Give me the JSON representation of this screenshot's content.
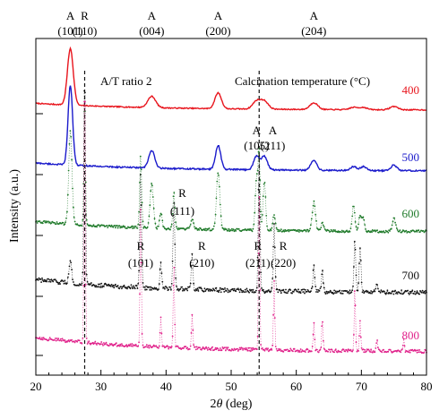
{
  "chart_data": {
    "type": "line",
    "title": "",
    "xlabel_prefix": "2",
    "xlabel_symbol": "θ",
    "xlabel_suffix": " (deg)",
    "ylabel": "Intensity (a.u.)",
    "xlim": [
      20,
      80
    ],
    "x_ticks": [
      20,
      30,
      40,
      50,
      60,
      70,
      80
    ],
    "grid": false,
    "y_ticks_shown": false,
    "annotations": {
      "ratio": "A/T ratio 2",
      "legend_title": "Calcination temperature (°C)"
    },
    "top_peak_labels": [
      {
        "phase": "A",
        "hkl": "(101)",
        "x": 25.3
      },
      {
        "phase": "R",
        "hkl": "(110)",
        "x": 27.5
      },
      {
        "phase": "A",
        "hkl": "(004)",
        "x": 37.8
      },
      {
        "phase": "A",
        "hkl": "(200)",
        "x": 48.0
      },
      {
        "phase": "A",
        "hkl": "(204)",
        "x": 62.7
      }
    ],
    "inline_peak_labels": [
      {
        "phase": "A",
        "hkl": "(105)",
        "x": 53.9,
        "series": "500"
      },
      {
        "phase": "A",
        "hkl": "(211)",
        "x": 55.1,
        "series": "500"
      },
      {
        "phase": "R",
        "hkl": "(111)",
        "x": 41.2,
        "series": "600"
      },
      {
        "phase": "R",
        "hkl": "(101)",
        "x": 36.1,
        "series": "700"
      },
      {
        "phase": "R",
        "hkl": "(210)",
        "x": 44.0,
        "series": "700"
      },
      {
        "phase": "R",
        "hkl": "(211)",
        "x": 54.3,
        "series": "700"
      },
      {
        "phase": "R",
        "hkl": "(220)",
        "x": 56.6,
        "series": "700"
      }
    ],
    "rutile_reference_lines": [
      27.5,
      54.3
    ],
    "series": [
      {
        "name": "400",
        "color": "#e8141c",
        "style": "line",
        "background": 0.12,
        "noise": 0.018,
        "peaks": [
          [
            25.3,
            1.0,
            0.45
          ],
          [
            37.8,
            0.2,
            0.6
          ],
          [
            48.0,
            0.28,
            0.5
          ],
          [
            53.9,
            0.14,
            0.6
          ],
          [
            55.1,
            0.14,
            0.6
          ],
          [
            62.7,
            0.12,
            0.6
          ],
          [
            68.8,
            0.04,
            0.6
          ],
          [
            70.3,
            0.04,
            0.6
          ],
          [
            75.0,
            0.06,
            0.6
          ]
        ]
      },
      {
        "name": "500",
        "color": "#1a1acb",
        "style": "line",
        "background": 0.1,
        "noise": 0.018,
        "peaks": [
          [
            25.3,
            1.0,
            0.35
          ],
          [
            37.8,
            0.22,
            0.45
          ],
          [
            48.0,
            0.3,
            0.4
          ],
          [
            53.9,
            0.17,
            0.45
          ],
          [
            55.1,
            0.17,
            0.45
          ],
          [
            62.7,
            0.13,
            0.45
          ],
          [
            68.8,
            0.05,
            0.45
          ],
          [
            70.3,
            0.05,
            0.45
          ],
          [
            75.0,
            0.07,
            0.45
          ]
        ]
      },
      {
        "name": "600",
        "color": "#1f7a2a",
        "style": "dots",
        "background": 0.08,
        "noise": 0.02,
        "peaks": [
          [
            25.3,
            0.72,
            0.25
          ],
          [
            27.5,
            1.0,
            0.12
          ],
          [
            36.1,
            0.55,
            0.15
          ],
          [
            37.8,
            0.34,
            0.25
          ],
          [
            39.2,
            0.12,
            0.2
          ],
          [
            41.2,
            0.28,
            0.15
          ],
          [
            44.0,
            0.08,
            0.2
          ],
          [
            48.0,
            0.45,
            0.25
          ],
          [
            53.9,
            0.4,
            0.2
          ],
          [
            54.3,
            0.58,
            0.15
          ],
          [
            55.1,
            0.38,
            0.2
          ],
          [
            56.6,
            0.12,
            0.2
          ],
          [
            62.7,
            0.22,
            0.25
          ],
          [
            64.0,
            0.06,
            0.2
          ],
          [
            68.8,
            0.2,
            0.2
          ],
          [
            69.8,
            0.12,
            0.2
          ],
          [
            70.3,
            0.1,
            0.2
          ],
          [
            75.0,
            0.1,
            0.25
          ]
        ]
      },
      {
        "name": "700",
        "color": "#111111",
        "style": "dots",
        "background": 0.06,
        "noise": 0.02,
        "peaks": [
          [
            25.3,
            0.1,
            0.2
          ],
          [
            27.5,
            1.0,
            0.12
          ],
          [
            36.1,
            0.52,
            0.13
          ],
          [
            39.2,
            0.12,
            0.13
          ],
          [
            41.2,
            0.42,
            0.13
          ],
          [
            44.0,
            0.16,
            0.13
          ],
          [
            54.3,
            0.62,
            0.13
          ],
          [
            56.6,
            0.32,
            0.13
          ],
          [
            62.7,
            0.13,
            0.13
          ],
          [
            64.0,
            0.1,
            0.13
          ],
          [
            69.0,
            0.24,
            0.13
          ],
          [
            69.8,
            0.21,
            0.13
          ],
          [
            72.4,
            0.04,
            0.13
          ]
        ]
      },
      {
        "name": "800",
        "color": "#e0208a",
        "style": "dots",
        "background": 0.05,
        "noise": 0.012,
        "peaks": [
          [
            27.5,
            1.0,
            0.1
          ],
          [
            36.1,
            0.48,
            0.1
          ],
          [
            39.2,
            0.1,
            0.1
          ],
          [
            41.2,
            0.3,
            0.1
          ],
          [
            44.0,
            0.12,
            0.1
          ],
          [
            54.3,
            0.55,
            0.1
          ],
          [
            56.6,
            0.24,
            0.1
          ],
          [
            62.7,
            0.1,
            0.1
          ],
          [
            64.0,
            0.11,
            0.1
          ],
          [
            69.0,
            0.22,
            0.1
          ],
          [
            69.8,
            0.1,
            0.1
          ],
          [
            72.4,
            0.04,
            0.1
          ],
          [
            76.5,
            0.04,
            0.1
          ]
        ]
      }
    ]
  }
}
